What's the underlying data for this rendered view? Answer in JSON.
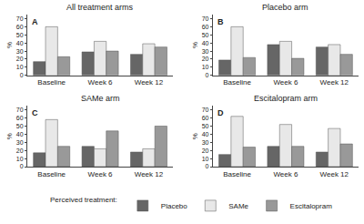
{
  "chart_data": [
    {
      "type": "bar",
      "title": "All treatment arms",
      "ylabel": "%",
      "categories": [
        "Baseline",
        "Week 6",
        "Week 12"
      ],
      "series": [
        {
          "name": "Placebo",
          "color": "#666666",
          "values": [
            17,
            29,
            26
          ]
        },
        {
          "name": "SAMe",
          "color": "#e8e8e8",
          "values": [
            60,
            42,
            39
          ]
        },
        {
          "name": "Escitalopram",
          "color": "#999999",
          "values": [
            23,
            30,
            35
          ]
        }
      ],
      "ylim": [
        0,
        75
      ],
      "yticks": [
        0,
        10,
        20,
        30,
        40,
        50,
        60,
        70
      ],
      "grid": false,
      "legend": "lower center",
      "annotations": [
        "A"
      ]
    },
    {
      "type": "bar",
      "title": "Placebo arm",
      "ylabel": "%",
      "categories": [
        "Baseline",
        "Week 6",
        "Week 12"
      ],
      "series": [
        {
          "name": "Placebo",
          "color": "#666666",
          "values": [
            19,
            38,
            35
          ]
        },
        {
          "name": "SAMe",
          "color": "#e8e8e8",
          "values": [
            60,
            42,
            38
          ]
        },
        {
          "name": "Escitalopram",
          "color": "#999999",
          "values": [
            22,
            21,
            26
          ]
        }
      ],
      "ylim": [
        0,
        75
      ],
      "yticks": [
        0,
        10,
        20,
        30,
        40,
        50,
        60,
        70
      ],
      "grid": false,
      "legend": "lower center",
      "annotations": [
        "B"
      ]
    },
    {
      "type": "bar",
      "title": "SAMe arm",
      "ylabel": "%",
      "categories": [
        "Baseline",
        "Week 6",
        "Week 12"
      ],
      "series": [
        {
          "name": "Placebo",
          "color": "#666666",
          "values": [
            17,
            25,
            18
          ]
        },
        {
          "name": "SAMe",
          "color": "#e8e8e8",
          "values": [
            58,
            22,
            22
          ]
        },
        {
          "name": "Escitalopram",
          "color": "#999999",
          "values": [
            25,
            44,
            50
          ]
        }
      ],
      "ylim": [
        0,
        75
      ],
      "yticks": [
        0,
        10,
        20,
        30,
        40,
        50,
        60,
        70
      ],
      "grid": false,
      "legend": "lower center",
      "annotations": [
        "C"
      ]
    },
    {
      "type": "bar",
      "title": "Escitalopram arm",
      "ylabel": "%",
      "categories": [
        "Baseline",
        "Week 6",
        "Week 12"
      ],
      "series": [
        {
          "name": "Placebo",
          "color": "#666666",
          "values": [
            15,
            25,
            18
          ]
        },
        {
          "name": "SAMe",
          "color": "#e8e8e8",
          "values": [
            62,
            52,
            47
          ]
        },
        {
          "name": "Escitalopram",
          "color": "#999999",
          "values": [
            24,
            25,
            28
          ]
        }
      ],
      "ylim": [
        0,
        75
      ],
      "yticks": [
        0,
        10,
        20,
        30,
        40,
        50,
        60,
        70
      ],
      "grid": false,
      "legend": "lower center",
      "annotations": [
        "D"
      ]
    }
  ],
  "annotations": [
    "Perceived treatment:"
  ]
}
